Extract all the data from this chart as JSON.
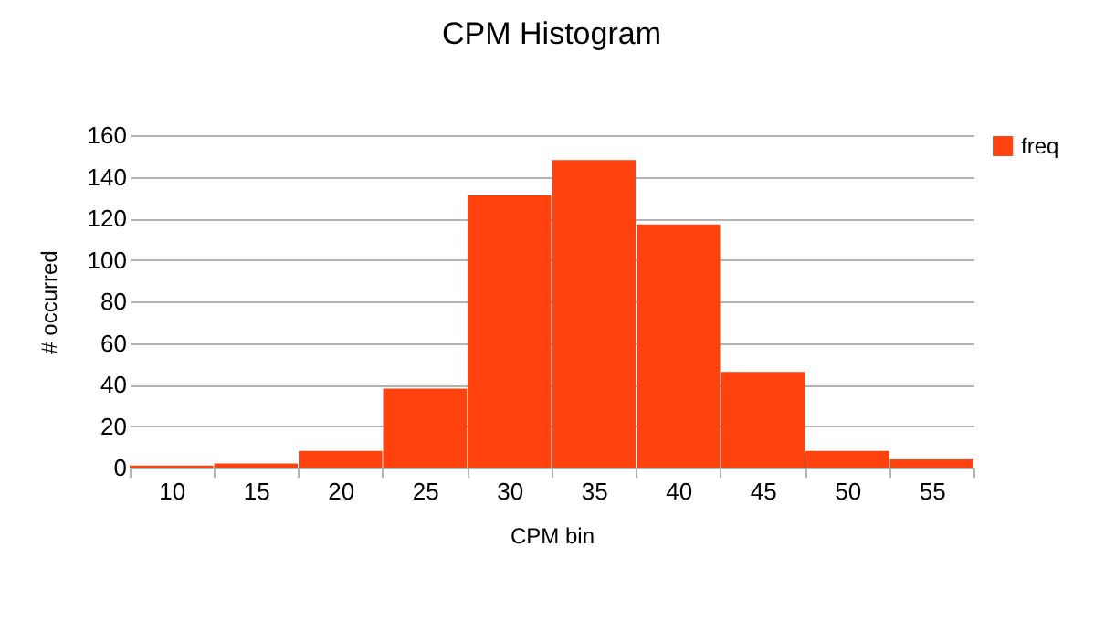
{
  "chart_data": {
    "type": "bar",
    "title": "CPM Histogram",
    "xlabel": "CPM bin",
    "ylabel": "# occurred",
    "categories": [
      "10",
      "15",
      "20",
      "25",
      "30",
      "35",
      "40",
      "45",
      "50",
      "55"
    ],
    "series": [
      {
        "name": "freq",
        "color": "#ff420e",
        "values": [
          1,
          2,
          8,
          38,
          131,
          148,
          117,
          46,
          8,
          4
        ]
      }
    ],
    "ylim": [
      0,
      160
    ],
    "yticks": [
      0,
      20,
      40,
      60,
      80,
      100,
      120,
      140,
      160
    ],
    "grid": "y",
    "legend": "right"
  }
}
